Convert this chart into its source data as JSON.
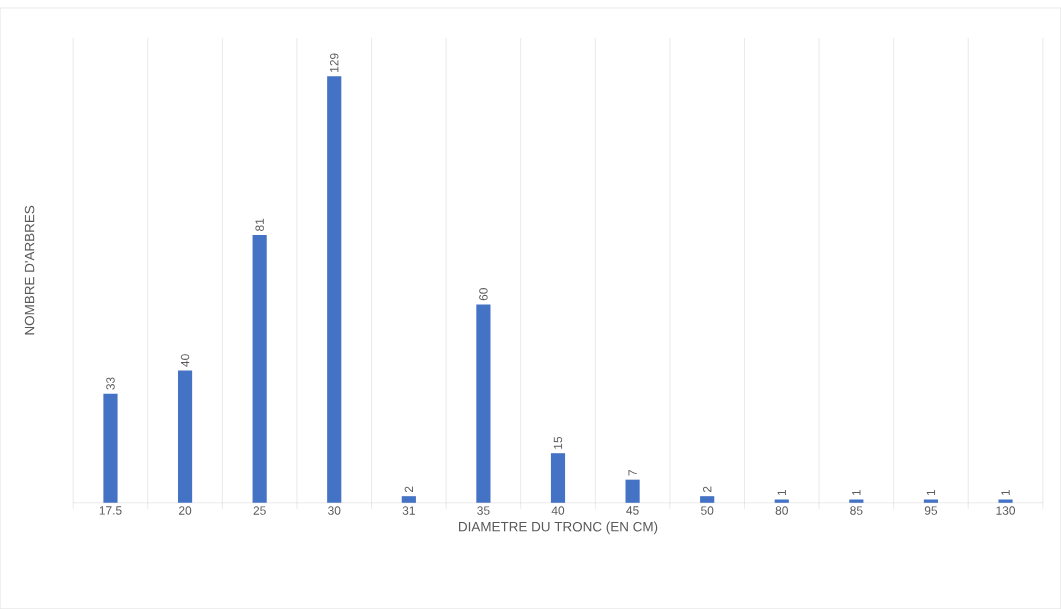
{
  "chart_data": {
    "type": "bar",
    "xlabel": "DIAMETRE DU TRONC (EN CM)",
    "ylabel": "NOMBRE D'ARBRES",
    "categories": [
      "17.5",
      "20",
      "25",
      "30",
      "31",
      "35",
      "40",
      "45",
      "50",
      "80",
      "85",
      "95",
      "130"
    ],
    "values": [
      33,
      40,
      81,
      129,
      2,
      60,
      15,
      7,
      2,
      1,
      1,
      1,
      1
    ],
    "color": "#4472c4",
    "data_labels": true,
    "grid": "x"
  }
}
